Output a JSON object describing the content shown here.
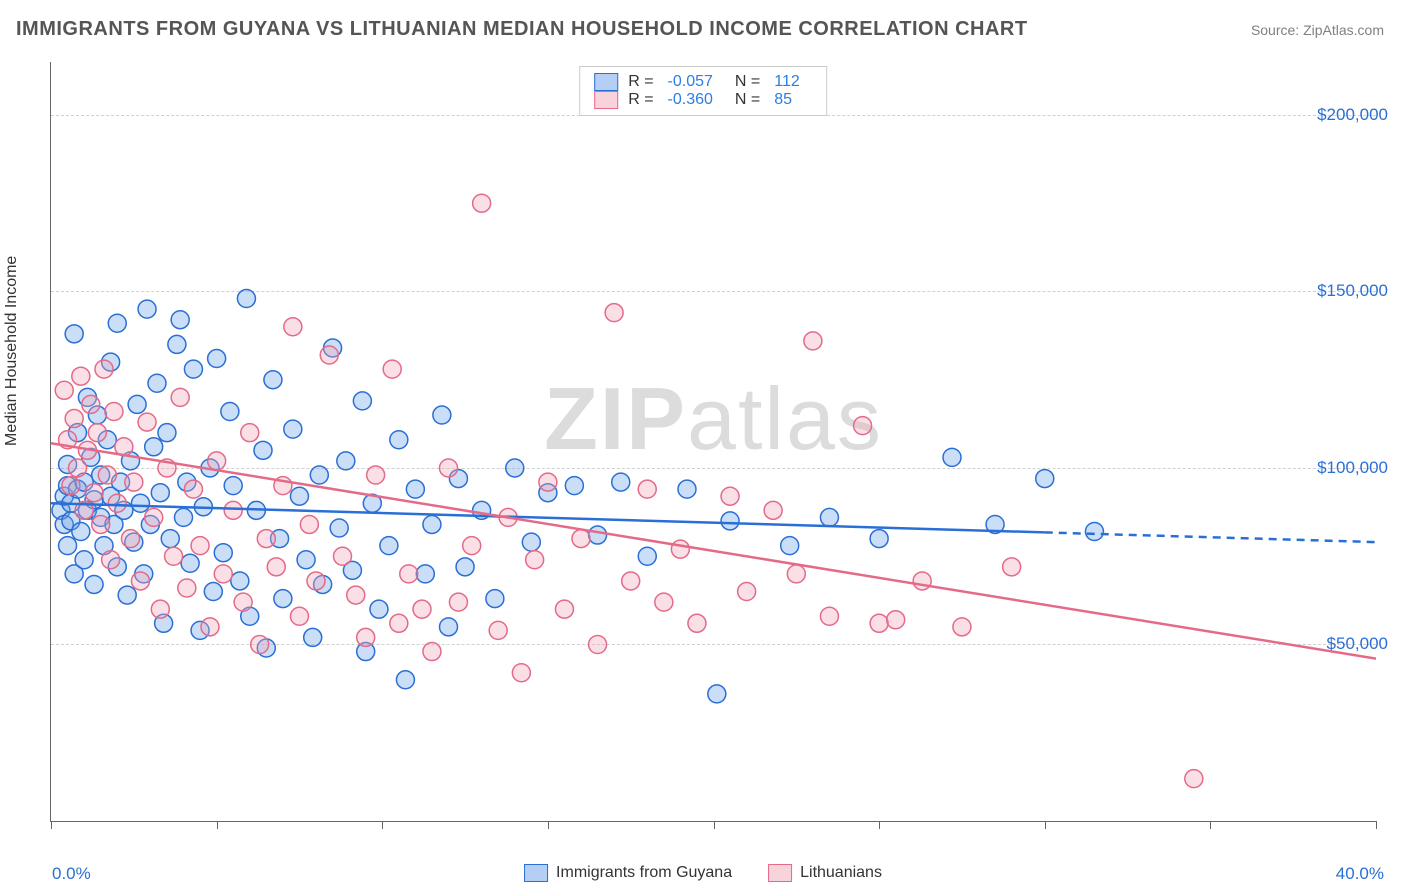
{
  "title": "IMMIGRANTS FROM GUYANA VS LITHUANIAN MEDIAN HOUSEHOLD INCOME CORRELATION CHART",
  "source": "Source: ZipAtlas.com",
  "watermark": {
    "part1": "ZIP",
    "part2": "atlas"
  },
  "ylabel": "Median Household Income",
  "chart": {
    "type": "scatter",
    "background_color": "#ffffff",
    "grid_color": "#d0d0d0",
    "axis_color": "#666666",
    "xlim": [
      0,
      40
    ],
    "ylim": [
      0,
      215000
    ],
    "x_ticks": [
      0,
      5,
      10,
      15,
      20,
      25,
      30,
      35,
      40
    ],
    "y_gridlines": [
      50000,
      100000,
      150000,
      200000
    ],
    "y_tick_labels": [
      "$50,000",
      "$100,000",
      "$150,000",
      "$200,000"
    ],
    "x_min_label": "0.0%",
    "x_max_label": "40.0%",
    "marker_radius": 9,
    "marker_stroke_width": 1.5,
    "marker_fill_opacity": 0.35,
    "line_width": 2.5,
    "series": [
      {
        "name": "Immigrants from Guyana",
        "key": "guyana",
        "color": "#6aa0e8",
        "stroke": "#2a6fd6",
        "R": "-0.057",
        "N": "112",
        "trend": {
          "y_at_x0": 90000,
          "y_at_xmax": 79000,
          "solid_until_x": 30
        },
        "points": [
          [
            0.3,
            88000
          ],
          [
            0.4,
            92000
          ],
          [
            0.4,
            84000
          ],
          [
            0.5,
            95000
          ],
          [
            0.5,
            78000
          ],
          [
            0.5,
            101000
          ],
          [
            0.6,
            90000
          ],
          [
            0.6,
            85000
          ],
          [
            0.7,
            138000
          ],
          [
            0.7,
            70000
          ],
          [
            0.8,
            110000
          ],
          [
            0.8,
            94000
          ],
          [
            0.9,
            82000
          ],
          [
            1.0,
            96000
          ],
          [
            1.0,
            74000
          ],
          [
            1.1,
            120000
          ],
          [
            1.1,
            88000
          ],
          [
            1.2,
            103000
          ],
          [
            1.3,
            91000
          ],
          [
            1.3,
            67000
          ],
          [
            1.4,
            115000
          ],
          [
            1.5,
            86000
          ],
          [
            1.5,
            98000
          ],
          [
            1.6,
            78000
          ],
          [
            1.7,
            108000
          ],
          [
            1.8,
            92000
          ],
          [
            1.8,
            130000
          ],
          [
            1.9,
            84000
          ],
          [
            2.0,
            72000
          ],
          [
            2.0,
            141000
          ],
          [
            2.1,
            96000
          ],
          [
            2.2,
            88000
          ],
          [
            2.3,
            64000
          ],
          [
            2.4,
            102000
          ],
          [
            2.5,
            79000
          ],
          [
            2.6,
            118000
          ],
          [
            2.7,
            90000
          ],
          [
            2.8,
            70000
          ],
          [
            2.9,
            145000
          ],
          [
            3.0,
            84000
          ],
          [
            3.1,
            106000
          ],
          [
            3.2,
            124000
          ],
          [
            3.3,
            93000
          ],
          [
            3.4,
            56000
          ],
          [
            3.5,
            110000
          ],
          [
            3.6,
            80000
          ],
          [
            3.8,
            135000
          ],
          [
            3.9,
            142000
          ],
          [
            4.0,
            86000
          ],
          [
            4.1,
            96000
          ],
          [
            4.2,
            73000
          ],
          [
            4.3,
            128000
          ],
          [
            4.5,
            54000
          ],
          [
            4.6,
            89000
          ],
          [
            4.8,
            100000
          ],
          [
            4.9,
            65000
          ],
          [
            5.0,
            131000
          ],
          [
            5.2,
            76000
          ],
          [
            5.4,
            116000
          ],
          [
            5.5,
            95000
          ],
          [
            5.7,
            68000
          ],
          [
            5.9,
            148000
          ],
          [
            6.0,
            58000
          ],
          [
            6.2,
            88000
          ],
          [
            6.4,
            105000
          ],
          [
            6.5,
            49000
          ],
          [
            6.7,
            125000
          ],
          [
            6.9,
            80000
          ],
          [
            7.0,
            63000
          ],
          [
            7.3,
            111000
          ],
          [
            7.5,
            92000
          ],
          [
            7.7,
            74000
          ],
          [
            7.9,
            52000
          ],
          [
            8.1,
            98000
          ],
          [
            8.2,
            67000
          ],
          [
            8.5,
            134000
          ],
          [
            8.7,
            83000
          ],
          [
            8.9,
            102000
          ],
          [
            9.1,
            71000
          ],
          [
            9.4,
            119000
          ],
          [
            9.5,
            48000
          ],
          [
            9.7,
            90000
          ],
          [
            9.9,
            60000
          ],
          [
            10.2,
            78000
          ],
          [
            10.5,
            108000
          ],
          [
            10.7,
            40000
          ],
          [
            11.0,
            94000
          ],
          [
            11.3,
            70000
          ],
          [
            11.5,
            84000
          ],
          [
            11.8,
            115000
          ],
          [
            12.0,
            55000
          ],
          [
            12.3,
            97000
          ],
          [
            12.5,
            72000
          ],
          [
            13.0,
            88000
          ],
          [
            13.4,
            63000
          ],
          [
            14.0,
            100000
          ],
          [
            14.5,
            79000
          ],
          [
            15.0,
            93000
          ],
          [
            15.8,
            95000
          ],
          [
            16.5,
            81000
          ],
          [
            17.2,
            96000
          ],
          [
            18.0,
            75000
          ],
          [
            19.2,
            94000
          ],
          [
            20.1,
            36000
          ],
          [
            20.5,
            85000
          ],
          [
            22.3,
            78000
          ],
          [
            23.5,
            86000
          ],
          [
            25.0,
            80000
          ],
          [
            27.2,
            103000
          ],
          [
            28.5,
            84000
          ],
          [
            30.0,
            97000
          ],
          [
            31.5,
            82000
          ]
        ]
      },
      {
        "name": "Lithuanians",
        "key": "lithuanians",
        "color": "#f2a7b8",
        "stroke": "#e46a88",
        "R": "-0.360",
        "N": "85",
        "trend": {
          "y_at_x0": 107000,
          "y_at_xmax": 46000,
          "solid_until_x": 40
        },
        "points": [
          [
            0.4,
            122000
          ],
          [
            0.5,
            108000
          ],
          [
            0.6,
            95000
          ],
          [
            0.7,
            114000
          ],
          [
            0.8,
            100000
          ],
          [
            0.9,
            126000
          ],
          [
            1.0,
            88000
          ],
          [
            1.1,
            105000
          ],
          [
            1.2,
            118000
          ],
          [
            1.3,
            93000
          ],
          [
            1.4,
            110000
          ],
          [
            1.5,
            84000
          ],
          [
            1.6,
            128000
          ],
          [
            1.7,
            98000
          ],
          [
            1.8,
            74000
          ],
          [
            1.9,
            116000
          ],
          [
            2.0,
            90000
          ],
          [
            2.2,
            106000
          ],
          [
            2.4,
            80000
          ],
          [
            2.5,
            96000
          ],
          [
            2.7,
            68000
          ],
          [
            2.9,
            113000
          ],
          [
            3.1,
            86000
          ],
          [
            3.3,
            60000
          ],
          [
            3.5,
            100000
          ],
          [
            3.7,
            75000
          ],
          [
            3.9,
            120000
          ],
          [
            4.1,
            66000
          ],
          [
            4.3,
            94000
          ],
          [
            4.5,
            78000
          ],
          [
            4.8,
            55000
          ],
          [
            5.0,
            102000
          ],
          [
            5.2,
            70000
          ],
          [
            5.5,
            88000
          ],
          [
            5.8,
            62000
          ],
          [
            6.0,
            110000
          ],
          [
            6.3,
            50000
          ],
          [
            6.5,
            80000
          ],
          [
            6.8,
            72000
          ],
          [
            7.0,
            95000
          ],
          [
            7.3,
            140000
          ],
          [
            7.5,
            58000
          ],
          [
            7.8,
            84000
          ],
          [
            8.0,
            68000
          ],
          [
            8.4,
            132000
          ],
          [
            8.8,
            75000
          ],
          [
            9.2,
            64000
          ],
          [
            9.5,
            52000
          ],
          [
            9.8,
            98000
          ],
          [
            10.3,
            128000
          ],
          [
            10.5,
            56000
          ],
          [
            10.8,
            70000
          ],
          [
            11.2,
            60000
          ],
          [
            11.5,
            48000
          ],
          [
            12.0,
            100000
          ],
          [
            12.3,
            62000
          ],
          [
            12.7,
            78000
          ],
          [
            13.0,
            175000
          ],
          [
            13.5,
            54000
          ],
          [
            13.8,
            86000
          ],
          [
            14.2,
            42000
          ],
          [
            14.6,
            74000
          ],
          [
            15.0,
            96000
          ],
          [
            15.5,
            60000
          ],
          [
            16.0,
            80000
          ],
          [
            16.5,
            50000
          ],
          [
            17.0,
            144000
          ],
          [
            17.5,
            68000
          ],
          [
            18.0,
            94000
          ],
          [
            18.5,
            62000
          ],
          [
            19.0,
            77000
          ],
          [
            19.5,
            56000
          ],
          [
            20.5,
            92000
          ],
          [
            21.0,
            65000
          ],
          [
            21.8,
            88000
          ],
          [
            22.5,
            70000
          ],
          [
            23.0,
            136000
          ],
          [
            23.5,
            58000
          ],
          [
            24.5,
            112000
          ],
          [
            25.0,
            56000
          ],
          [
            25.5,
            57000
          ],
          [
            26.3,
            68000
          ],
          [
            27.5,
            55000
          ],
          [
            29.0,
            72000
          ],
          [
            34.5,
            12000
          ]
        ]
      }
    ]
  },
  "legend_bottom": [
    {
      "label": "Immigrants from Guyana",
      "fill": "#6aa0e8",
      "stroke": "#2a6fd6"
    },
    {
      "label": "Lithuanians",
      "fill": "#f2a7b8",
      "stroke": "#e46a88"
    }
  ]
}
